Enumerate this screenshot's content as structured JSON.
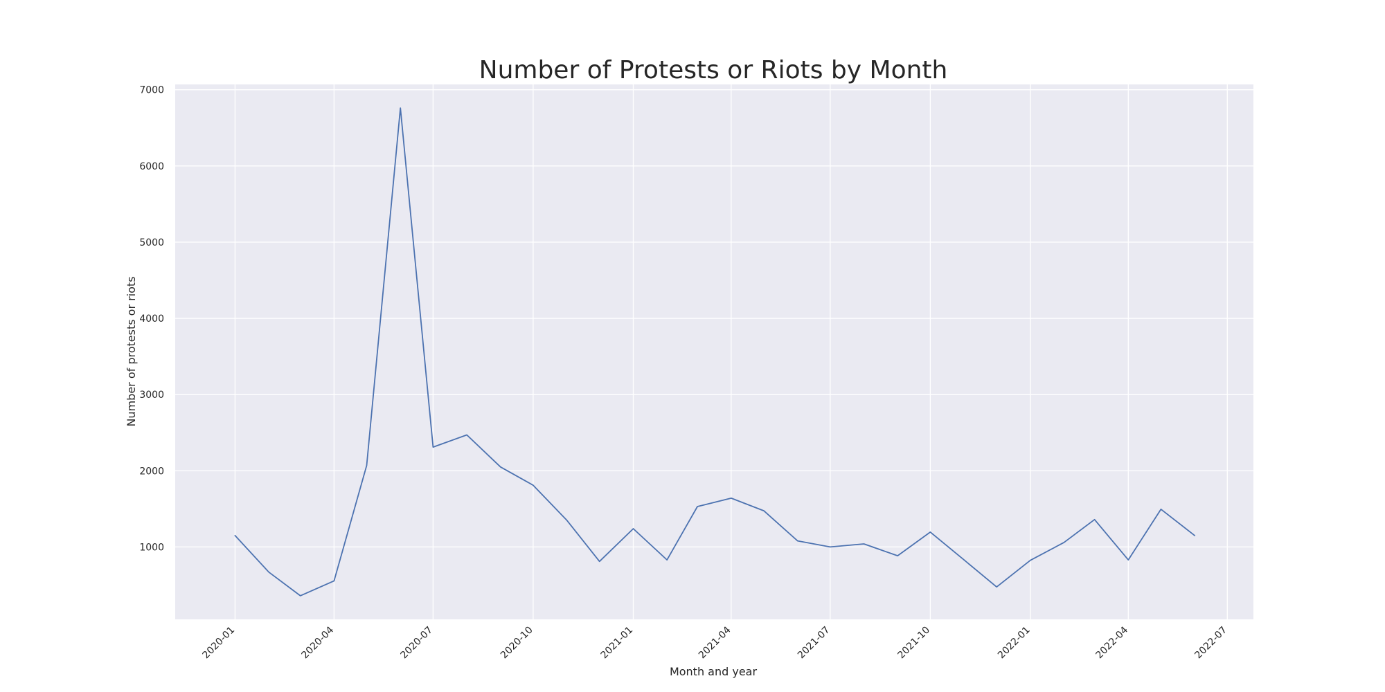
{
  "chart_data": {
    "type": "line",
    "title": "Number of Protests or Riots by Month",
    "xlabel": "Month and year",
    "ylabel": "Number of protests or riots",
    "grid": true,
    "legend": "none",
    "colors": {
      "background": "#eaeaf2",
      "grid": "#ffffff",
      "series": "#4c72b0",
      "text": "#262626"
    },
    "xlim": [
      "2019-11-07",
      "2022-07-25"
    ],
    "ylim": [
      50,
      7070
    ],
    "x_ticks": [
      "2020-01",
      "2020-04",
      "2020-07",
      "2020-10",
      "2021-01",
      "2021-04",
      "2021-07",
      "2021-10",
      "2022-01",
      "2022-04",
      "2022-07"
    ],
    "y_ticks": [
      1000,
      2000,
      3000,
      4000,
      5000,
      6000,
      7000
    ],
    "series": [
      {
        "x": [
          "2020-01",
          "2020-02",
          "2020-03",
          "2020-04",
          "2020-05",
          "2020-06",
          "2020-07",
          "2020-08",
          "2020-09",
          "2020-10",
          "2020-11",
          "2020-12",
          "2021-01",
          "2021-02",
          "2021-03",
          "2021-04",
          "2021-05",
          "2021-06",
          "2021-07",
          "2021-08",
          "2021-09",
          "2021-10",
          "2021-11",
          "2021-12",
          "2022-01",
          "2022-02",
          "2022-03",
          "2022-04",
          "2022-05",
          "2022-06"
        ],
        "values": [
          1150,
          670,
          360,
          555,
          2070,
          6760,
          2310,
          2470,
          2050,
          1810,
          1350,
          810,
          1240,
          830,
          1530,
          1640,
          1475,
          1080,
          1000,
          1040,
          885,
          1195,
          830,
          475,
          825,
          1060,
          1360,
          830,
          1495,
          1150
        ]
      }
    ]
  }
}
